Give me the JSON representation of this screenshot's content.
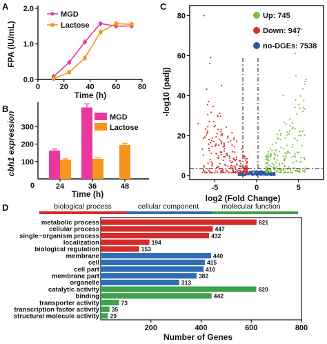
{
  "panels": {
    "A": "A",
    "B": "B",
    "C": "C",
    "D": "D"
  },
  "colors": {
    "mgd": "#e8399b",
    "lactose": "#f7941d",
    "up": "#7dc242",
    "down": "#e22a2a",
    "nodge": "#2b56a6",
    "bp": "#d62b2b",
    "cc": "#2f6db5",
    "mf": "#3fa34d"
  },
  "chart_data": [
    {
      "panel": "A",
      "type": "line",
      "ylabel": "FPA (IU/mL)",
      "xlabel": "Time (h)",
      "xlim": [
        0,
        80
      ],
      "ylim": [
        0,
        2.0
      ],
      "xticks": [
        "0",
        "20",
        "40",
        "60",
        "80"
      ],
      "yticks": [
        "0.0",
        "1.0",
        "2.0"
      ],
      "series": [
        {
          "name": "MGD",
          "x": [
            12,
            24,
            36,
            48,
            60,
            72
          ],
          "y": [
            0.08,
            0.48,
            1.05,
            1.57,
            1.5,
            1.5
          ]
        },
        {
          "name": "Lactose",
          "x": [
            12,
            24,
            36,
            48,
            60,
            72
          ],
          "y": [
            0.02,
            0.2,
            0.6,
            1.33,
            1.57,
            1.55
          ]
        }
      ]
    },
    {
      "panel": "B",
      "type": "bar",
      "ylabel": "cbh1 expression",
      "xlabel": "Time (h)",
      "categories": [
        "24",
        "36",
        "48"
      ],
      "yticks": [
        "100",
        "200",
        "300"
      ],
      "ylim": [
        0,
        440
      ],
      "xzero": "0",
      "series": [
        {
          "name": "MGD",
          "values": [
            163,
            410,
            null
          ]
        },
        {
          "name": "Lactose",
          "values": [
            110,
            115,
            195
          ]
        }
      ]
    },
    {
      "panel": "C",
      "type": "scatter",
      "ylabel": "-log10 (padj)",
      "xlabel": "log2 (Fold Change)",
      "xlim": [
        -8,
        8
      ],
      "ylim": [
        -2,
        85
      ],
      "xticks": [
        "-5",
        "0",
        "5"
      ],
      "yticks": [
        "0",
        "20",
        "40",
        "60",
        "80"
      ],
      "legend": [
        {
          "name": "Up: 745",
          "color": "#7dc242"
        },
        {
          "name": "Down: 947",
          "color": "#e22a2a"
        },
        {
          "name": "no-DGEs: 7538",
          "color": "#2b56a6"
        }
      ]
    },
    {
      "panel": "D",
      "type": "bar",
      "orientation": "horizontal",
      "xlabel": "Number of Genes",
      "xlim": [
        0,
        800
      ],
      "xticks": [
        "200",
        "400",
        "600",
        "800"
      ],
      "groups": [
        "biological process",
        "cellular component",
        "molecular function"
      ],
      "categories": [
        "metabolic process",
        "cellular process",
        "single−organism process",
        "localization",
        "biological regulation",
        "membrane",
        "cell",
        "cell part",
        "membrane part",
        "organelle",
        "catalytic activity",
        "binding",
        "transporter activity",
        "transcription factor activity",
        "structural molecule activity"
      ],
      "values": [
        621,
        447,
        432,
        194,
        153,
        440,
        415,
        410,
        382,
        313,
        620,
        442,
        73,
        35,
        29
      ],
      "group_of": [
        0,
        0,
        0,
        0,
        0,
        1,
        1,
        1,
        1,
        1,
        2,
        2,
        2,
        2,
        2
      ]
    }
  ]
}
